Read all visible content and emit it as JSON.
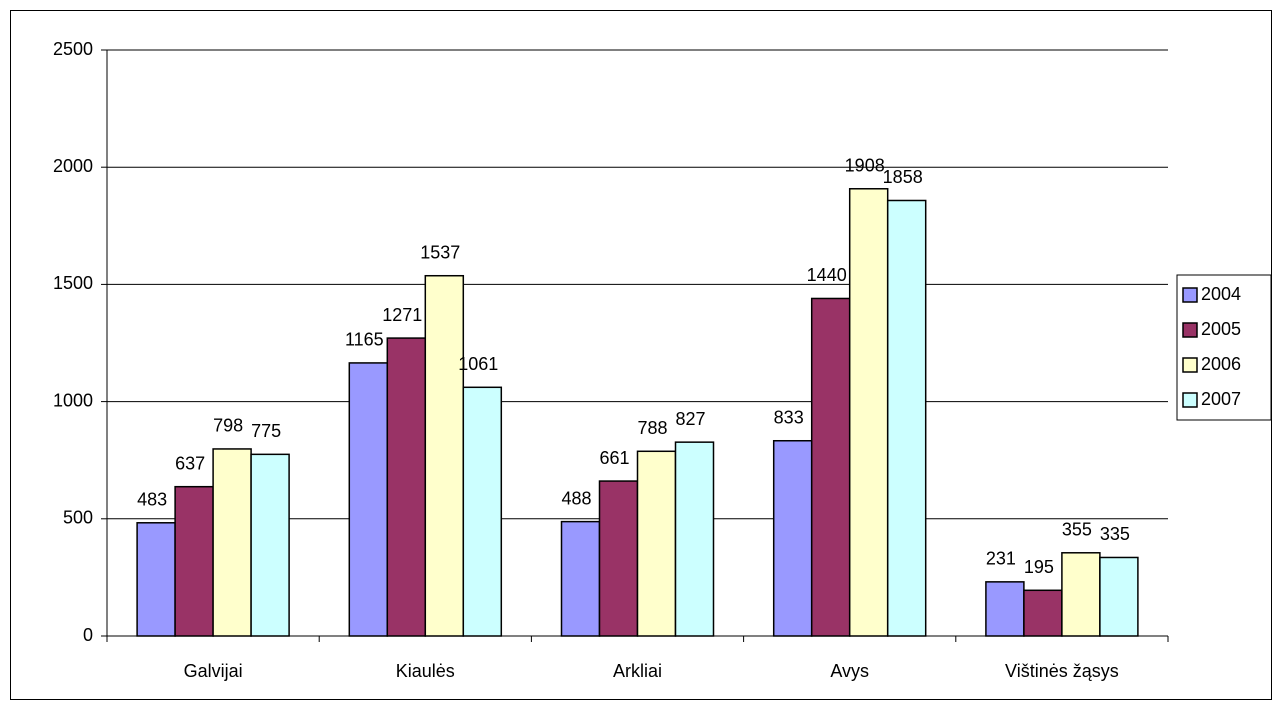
{
  "chart_data": {
    "type": "bar",
    "categories": [
      "Galvijai",
      "Kiaulės",
      "Arkliai",
      "Avys",
      "Vištinės žąsys"
    ],
    "series": [
      {
        "name": "2004",
        "color": "#9999ff",
        "values": [
          483,
          1165,
          488,
          833,
          231
        ]
      },
      {
        "name": "2005",
        "color": "#993366",
        "values": [
          637,
          1271,
          661,
          1440,
          195
        ]
      },
      {
        "name": "2006",
        "color": "#ffffcc",
        "values": [
          798,
          1537,
          788,
          1908,
          355
        ]
      },
      {
        "name": "2007",
        "color": "#ccffff",
        "values": [
          775,
          1061,
          827,
          1858,
          335
        ]
      }
    ],
    "ylim": [
      0,
      2500
    ],
    "yticks": [
      0,
      500,
      1000,
      1500,
      2000,
      2500
    ],
    "grid": true,
    "legend": "right"
  }
}
